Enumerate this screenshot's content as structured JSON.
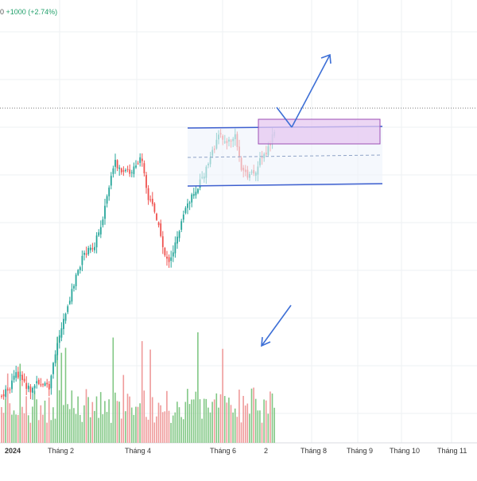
{
  "header": {
    "price_fragment": "0",
    "change_text": "+1000 (+2.74%)"
  },
  "colors": {
    "up": "#26a69a",
    "down": "#ef5350",
    "volume_up": "#81c784",
    "volume_down": "#ef9a9a",
    "channel": "#3d5fcf",
    "target_box_fill": "#e6c8f0",
    "target_box_stroke": "#9c4fb5",
    "arrow": "#3d6fd6",
    "grid": "#eef0f3"
  },
  "chart_data": {
    "type": "candlestick",
    "title": "",
    "xlabel": "",
    "ylabel": "",
    "x_ticks": [
      "2024",
      "Tháng 2",
      "Tháng 4",
      "Tháng 6",
      "2",
      "Tháng 8",
      "Tháng 9",
      "Tháng 10",
      "Tháng 11"
    ],
    "price_change": "+1000 (+2.74%)",
    "grid": true,
    "annotations": [
      "price-channel",
      "target-box",
      "arrow-up",
      "arrow-down-to-volume"
    ]
  }
}
